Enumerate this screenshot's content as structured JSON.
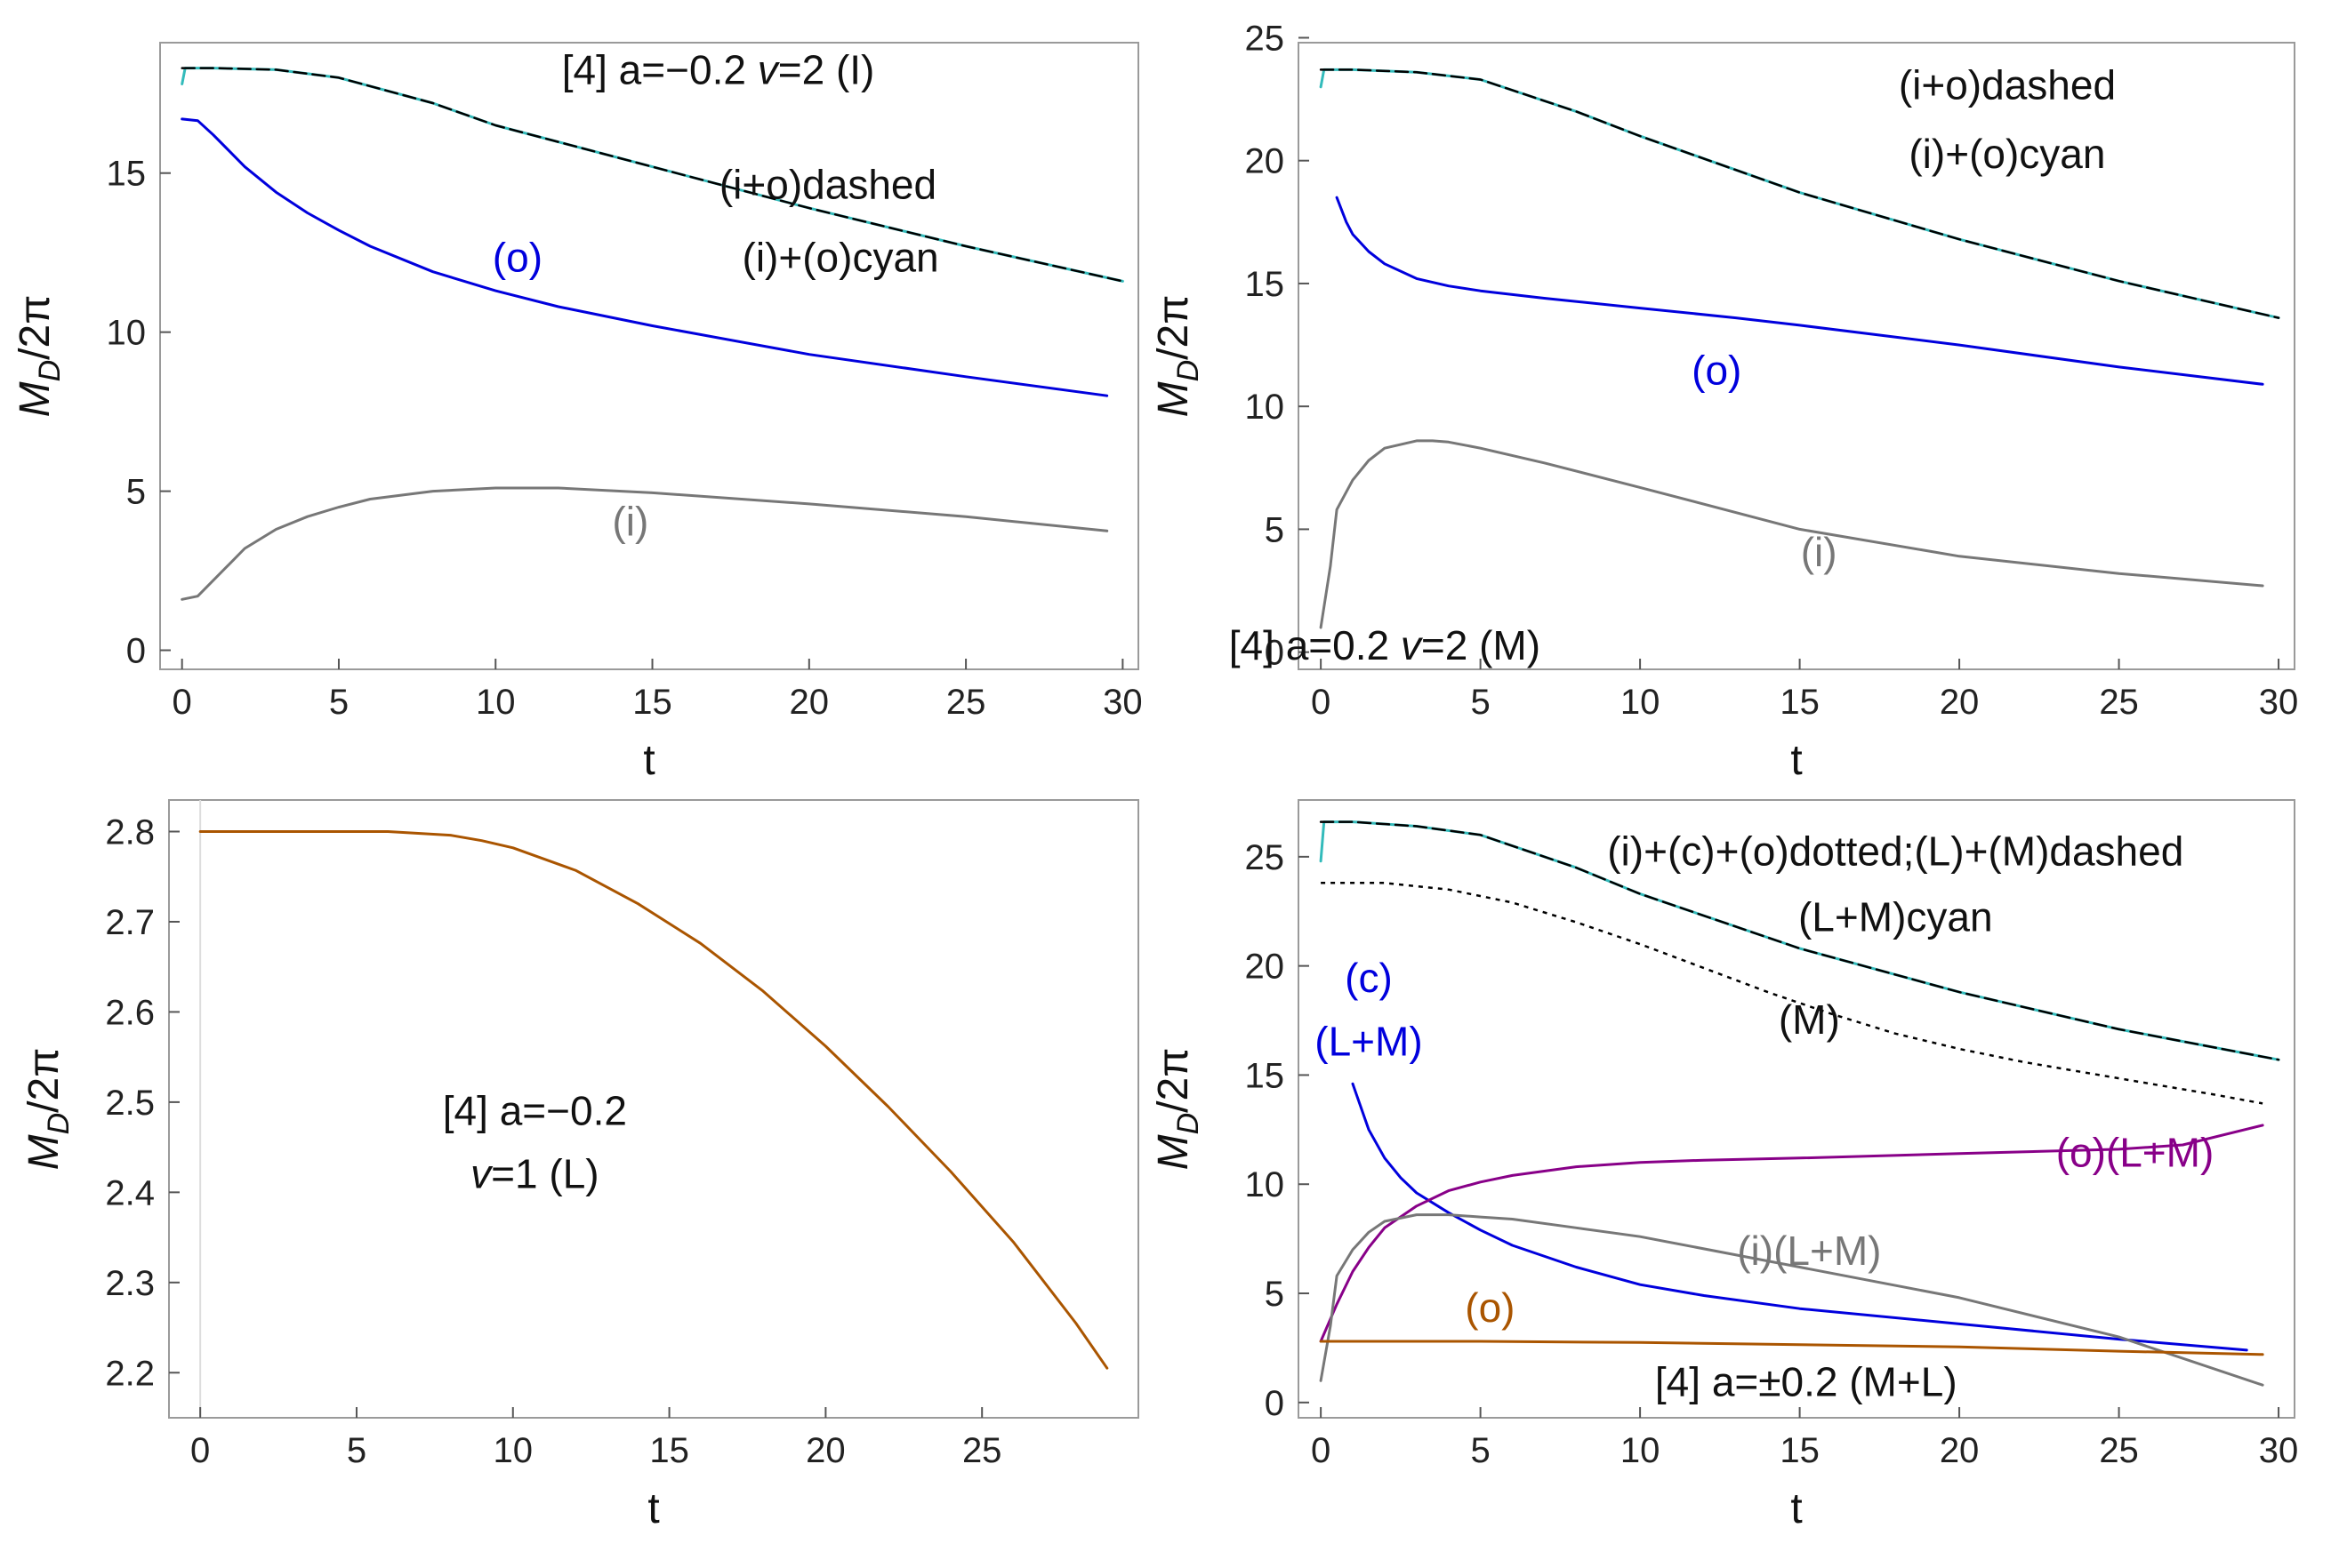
{
  "chart_data": [
    {
      "type": "line",
      "xlabel": "t",
      "ylabel_main": "M",
      "ylabel_sub": "D",
      "ylabel_tail": "/2π",
      "xlim": [
        -0.7,
        30.5
      ],
      "ylim": [
        -0.6,
        19.1
      ],
      "xticks": [
        0,
        5,
        10,
        15,
        20,
        25,
        30
      ],
      "yticks": [
        0,
        5,
        10,
        15
      ],
      "series": [
        {
          "name": "(o)",
          "color": "#0000dd",
          "style": "solid",
          "x": [
            0,
            0.5,
            1,
            1.5,
            2,
            3,
            4,
            5,
            6,
            8,
            10,
            12,
            15,
            20,
            25,
            29.5
          ],
          "y": [
            16.7,
            16.65,
            16.2,
            15.7,
            15.2,
            14.4,
            13.75,
            13.2,
            12.7,
            11.9,
            11.3,
            10.8,
            10.2,
            9.3,
            8.6,
            8.0
          ]
        },
        {
          "name": "(i)",
          "color": "#777777",
          "style": "solid",
          "x": [
            0,
            0.5,
            1,
            1.5,
            2,
            3,
            4,
            5,
            6,
            8,
            10,
            12,
            15,
            20,
            25,
            29.5
          ],
          "y": [
            1.6,
            1.7,
            2.2,
            2.7,
            3.2,
            3.8,
            4.2,
            4.5,
            4.75,
            5.0,
            5.1,
            5.1,
            4.95,
            4.6,
            4.2,
            3.75
          ]
        },
        {
          "name": "(i)+(o)",
          "color": "#33bbbb",
          "style": "solid",
          "x": [
            0,
            0.1,
            1,
            3,
            5,
            8,
            10,
            15,
            20,
            25,
            30
          ],
          "y": [
            17.8,
            18.3,
            18.3,
            18.25,
            18.0,
            17.2,
            16.5,
            15.2,
            13.9,
            12.7,
            11.6
          ]
        },
        {
          "name": "(i+o)",
          "color": "#000000",
          "style": "dashed",
          "x": [
            0,
            1,
            3,
            5,
            8,
            10,
            15,
            20,
            25,
            30
          ],
          "y": [
            18.3,
            18.3,
            18.25,
            18.0,
            17.2,
            16.5,
            15.2,
            13.9,
            12.7,
            11.6
          ]
        }
      ],
      "annotations": [
        {
          "id": "title",
          "text": "[4] a=−0.2 ",
          "italic": "v",
          "rest": "=2 (I)",
          "color": "#111111",
          "x": 17.1,
          "y": 17.8
        },
        {
          "id": "dashed",
          "text": "(i+o)dashed",
          "color": "#111111",
          "x": 20.6,
          "y": 14.2
        },
        {
          "id": "cyan",
          "text": "(i)+(o)cyan",
          "color": "#111111",
          "x": 21.0,
          "y": 11.9
        },
        {
          "id": "o",
          "text": "(o)",
          "color": "#0000dd",
          "x": 10.7,
          "y": 11.9
        },
        {
          "id": "i",
          "text": "(i)",
          "color": "#777777",
          "x": 14.3,
          "y": 3.6
        }
      ]
    },
    {
      "type": "line",
      "xlabel": "t",
      "ylabel_main": "M",
      "ylabel_sub": "D",
      "ylabel_tail": "/2π",
      "xlim": [
        -0.7,
        30.5
      ],
      "ylim": [
        -0.7,
        24.8
      ],
      "xticks": [
        0,
        5,
        10,
        15,
        20,
        25,
        30
      ],
      "yticks": [
        0,
        5,
        10,
        15,
        20,
        25
      ],
      "series": [
        {
          "name": "(o)",
          "color": "#0000dd",
          "style": "solid",
          "x": [
            0.5,
            0.8,
            1,
            1.5,
            2,
            3,
            4,
            5,
            7,
            10,
            13,
            15,
            20,
            25,
            29.5
          ],
          "y": [
            18.5,
            17.5,
            17.0,
            16.3,
            15.8,
            15.2,
            14.9,
            14.7,
            14.4,
            14.0,
            13.6,
            13.3,
            12.5,
            11.6,
            10.9
          ]
        },
        {
          "name": "(i)",
          "color": "#777777",
          "style": "solid",
          "x": [
            0,
            0.3,
            0.5,
            1,
            1.5,
            2,
            3,
            3.5,
            4,
            5,
            7,
            10,
            15,
            20,
            25,
            29.5
          ],
          "y": [
            1.0,
            3.5,
            5.8,
            7.0,
            7.8,
            8.3,
            8.6,
            8.6,
            8.55,
            8.3,
            7.7,
            6.7,
            5.0,
            3.9,
            3.2,
            2.7
          ]
        },
        {
          "name": "(i)+(o)",
          "color": "#33bbbb",
          "style": "solid",
          "x": [
            0,
            0.1,
            1,
            3,
            5,
            8,
            10,
            15,
            20,
            25,
            30
          ],
          "y": [
            23.0,
            23.7,
            23.7,
            23.6,
            23.3,
            22.0,
            21.0,
            18.7,
            16.8,
            15.1,
            13.6
          ]
        },
        {
          "name": "(i+o)",
          "color": "#000000",
          "style": "dashed",
          "x": [
            0,
            1,
            3,
            5,
            8,
            10,
            15,
            20,
            25,
            30
          ],
          "y": [
            23.7,
            23.7,
            23.6,
            23.3,
            22.0,
            21.0,
            18.7,
            16.8,
            15.1,
            13.6
          ]
        }
      ],
      "annotations": [
        {
          "id": "dashed",
          "text": "(i+o)dashed",
          "color": "#111111",
          "x": 21.5,
          "y": 22.5
        },
        {
          "id": "cyan",
          "text": "(i)+(o)cyan",
          "color": "#111111",
          "x": 21.5,
          "y": 19.7
        },
        {
          "id": "o",
          "text": "(o)",
          "color": "#0000dd",
          "x": 12.4,
          "y": 10.9
        },
        {
          "id": "i",
          "text": "(i)",
          "color": "#777777",
          "x": 15.6,
          "y": 3.5
        },
        {
          "id": "title",
          "text": "[4] a=0.2 ",
          "italic": "v",
          "rest": "=2 (M)",
          "color": "#111111",
          "x": 2.0,
          "y": -0.3
        }
      ]
    },
    {
      "type": "line",
      "xlabel": "t",
      "ylabel_main": "M",
      "ylabel_sub": "D",
      "ylabel_tail": "/2π",
      "xlim": [
        -1.0,
        30.0
      ],
      "ylim": [
        2.15,
        2.835
      ],
      "xticks": [
        0,
        5,
        10,
        15,
        20,
        25
      ],
      "yticks": [
        2.2,
        2.3,
        2.4,
        2.5,
        2.6,
        2.7,
        2.8
      ],
      "ytick_decimals": 1,
      "series": [
        {
          "name": "(L)",
          "color": "#aa5500",
          "style": "solid",
          "x": [
            0,
            2,
            4,
            6,
            8,
            9,
            10,
            12,
            14,
            16,
            18,
            20,
            22,
            24,
            26,
            28,
            29
          ],
          "y": [
            2.8,
            2.8,
            2.8,
            2.8,
            2.796,
            2.79,
            2.782,
            2.757,
            2.72,
            2.676,
            2.623,
            2.562,
            2.495,
            2.423,
            2.345,
            2.255,
            2.205
          ]
        }
      ],
      "annotations": [
        {
          "id": "l1",
          "text": "[4] a=−0.2",
          "color": "#111111",
          "x": 10.7,
          "y": 2.475
        },
        {
          "id": "l2",
          "text": "",
          "italic": "v",
          "rest": "=1 (L)",
          "color": "#111111",
          "x": 10.7,
          "y": 2.405
        }
      ]
    },
    {
      "type": "line",
      "xlabel": "t",
      "ylabel_main": "M",
      "ylabel_sub": "D",
      "ylabel_tail": "/2π",
      "xlim": [
        -0.7,
        30.5
      ],
      "ylim": [
        -0.7,
        27.6
      ],
      "xticks": [
        0,
        5,
        10,
        15,
        20,
        25,
        30
      ],
      "yticks": [
        0,
        5,
        10,
        15,
        20,
        25
      ],
      "series": [
        {
          "name": "(M) dotted",
          "color": "#000000",
          "style": "dotted",
          "x": [
            0,
            2,
            4,
            6,
            8,
            10,
            12,
            14,
            16,
            18,
            20,
            22,
            24,
            26,
            28,
            29.5
          ],
          "y": [
            23.8,
            23.8,
            23.5,
            22.9,
            22.0,
            21.0,
            19.9,
            18.8,
            17.8,
            16.9,
            16.2,
            15.6,
            15.1,
            14.6,
            14.1,
            13.7
          ]
        },
        {
          "name": "(c)(L+M)",
          "color": "#0000dd",
          "style": "solid",
          "x": [
            1,
            1.5,
            2,
            2.5,
            3,
            4,
            5,
            6,
            8,
            10,
            12,
            15,
            20,
            25,
            29
          ],
          "y": [
            14.6,
            12.5,
            11.2,
            10.3,
            9.6,
            8.7,
            7.9,
            7.2,
            6.2,
            5.4,
            4.9,
            4.3,
            3.6,
            2.9,
            2.4
          ]
        },
        {
          "name": "(o)(L+M)",
          "color": "#880088",
          "style": "solid",
          "x": [
            0,
            0.5,
            1,
            1.5,
            2,
            3,
            4,
            5,
            6,
            8,
            10,
            12,
            15,
            20,
            25,
            27,
            29.5
          ],
          "y": [
            2.8,
            4.5,
            6.0,
            7.1,
            8.0,
            9.0,
            9.7,
            10.1,
            10.4,
            10.8,
            11.0,
            11.1,
            11.2,
            11.4,
            11.6,
            11.8,
            12.7
          ]
        },
        {
          "name": "(i)(L+M)",
          "color": "#777777",
          "style": "solid",
          "x": [
            0,
            0.3,
            0.5,
            1,
            1.5,
            2,
            3,
            4,
            5,
            6,
            8,
            10,
            15,
            20,
            25,
            29.5
          ],
          "y": [
            1.0,
            3.5,
            5.8,
            7.0,
            7.8,
            8.3,
            8.6,
            8.6,
            8.5,
            8.4,
            8.0,
            7.6,
            6.2,
            4.8,
            3.0,
            0.8
          ]
        },
        {
          "name": "(o)",
          "color": "#aa5500",
          "style": "solid",
          "x": [
            0,
            5,
            10,
            15,
            20,
            25,
            29.5
          ],
          "y": [
            2.8,
            2.8,
            2.75,
            2.65,
            2.55,
            2.35,
            2.2
          ]
        },
        {
          "name": "(L+M)",
          "color": "#33bbbb",
          "style": "solid",
          "x": [
            0,
            0.1,
            1,
            3,
            5,
            8,
            10,
            15,
            20,
            25,
            30
          ],
          "y": [
            24.8,
            26.6,
            26.6,
            26.4,
            26.0,
            24.5,
            23.3,
            20.8,
            18.8,
            17.1,
            15.7
          ]
        },
        {
          "name": "(L)+(M)",
          "color": "#000000",
          "style": "dashed",
          "x": [
            0,
            1,
            3,
            5,
            8,
            10,
            15,
            20,
            25,
            30
          ],
          "y": [
            26.6,
            26.6,
            26.4,
            26.0,
            24.5,
            23.3,
            20.8,
            18.8,
            17.1,
            15.7
          ]
        }
      ],
      "annotations": [
        {
          "id": "dotted",
          "text": "(i)+(c)+(o)dotted;(L)+(M)dashed",
          "color": "#111111",
          "x": 18.0,
          "y": 24.6
        },
        {
          "id": "cyan",
          "text": "(L+M)cyan",
          "color": "#111111",
          "x": 18.0,
          "y": 21.6
        },
        {
          "id": "M",
          "text": "(M)",
          "color": "#111111",
          "x": 15.3,
          "y": 16.9
        },
        {
          "id": "c",
          "text": "(c)",
          "color": "#0000dd",
          "x": 1.5,
          "y": 18.8
        },
        {
          "id": "LM",
          "text": "(L+M)",
          "color": "#0000dd",
          "x": 1.5,
          "y": 15.9
        },
        {
          "id": "oLM",
          "text": "(o)(L+M)",
          "color": "#880088",
          "x": 25.5,
          "y": 10.8
        },
        {
          "id": "iLM",
          "text": "(i)(L+M)",
          "color": "#777777",
          "x": 15.3,
          "y": 6.3
        },
        {
          "id": "o",
          "text": "(o)",
          "color": "#aa5500",
          "x": 5.3,
          "y": 3.7
        },
        {
          "id": "title",
          "text": "[4] a=±0.2 (M+L)",
          "color": "#111111",
          "x": 15.2,
          "y": 0.3
        }
      ]
    }
  ]
}
